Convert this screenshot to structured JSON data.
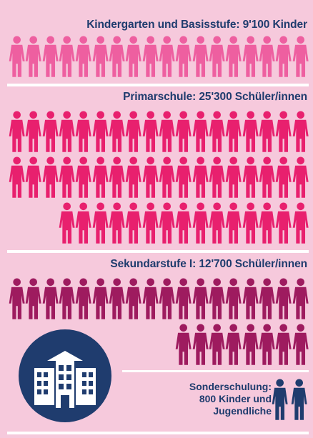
{
  "sections": {
    "kindergarten": {
      "label": "Kindergarten und Basisstufe: 9'100 Kinder",
      "icon_count": 18,
      "color": "#ee5fa0"
    },
    "primar": {
      "label": "Primarschule: 25'300 Schüler/innen",
      "icon_count": 51,
      "color": "#e8206e"
    },
    "sekundar": {
      "label": "Sekundarstufe I: 12'700 Schüler/innen",
      "icon_count": 26,
      "color": "#9e1b5f"
    }
  },
  "sonderschulung": {
    "line1": "Sonderschulung:",
    "line2": "800 Kinder und",
    "line3": "Jugendliche",
    "icon_count": 2,
    "color": "#1f3c6e"
  },
  "icons": {
    "person": "person-icon",
    "school": "school-building-icon"
  }
}
